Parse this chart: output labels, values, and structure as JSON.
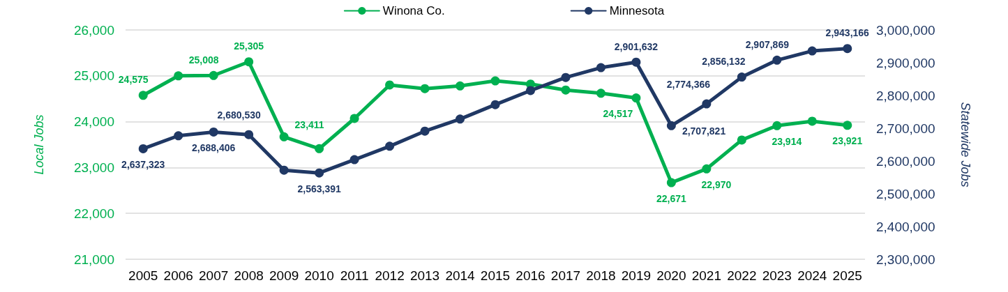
{
  "chart_data": {
    "type": "line",
    "categories": [
      "2005",
      "2006",
      "2007",
      "2008",
      "2009",
      "2010",
      "2011",
      "2012",
      "2013",
      "2014",
      "2015",
      "2016",
      "2017",
      "2018",
      "2019",
      "2020",
      "2021",
      "2022",
      "2023",
      "2024",
      "2025"
    ],
    "series": [
      {
        "name": "Winona Co.",
        "color": "#00b050",
        "axis": "y",
        "values": [
          24575,
          25000,
          25008,
          25305,
          23670,
          23411,
          24070,
          24800,
          24720,
          24780,
          24890,
          24820,
          24690,
          24620,
          24517,
          22671,
          22970,
          23600,
          23914,
          24010,
          23921
        ],
        "value_labels": [
          "24,575",
          null,
          "25,008",
          "25,305",
          null,
          "23,411",
          null,
          null,
          null,
          null,
          null,
          null,
          null,
          null,
          "24,517",
          "22,671",
          "22,970",
          null,
          "23,914",
          null,
          "23,921"
        ]
      },
      {
        "name": "Minnesota",
        "color": "#203864",
        "axis": "y2",
        "values": [
          2637323,
          2677000,
          2688406,
          2680530,
          2572000,
          2563391,
          2604000,
          2645000,
          2691000,
          2728000,
          2772000,
          2815000,
          2855000,
          2885000,
          2901632,
          2707821,
          2774366,
          2856132,
          2907869,
          2936000,
          2943166
        ],
        "value_labels": [
          "2,637,323",
          null,
          "2,688,406",
          "2,680,530",
          null,
          "2,563,391",
          null,
          null,
          null,
          null,
          null,
          null,
          null,
          null,
          "2,901,632",
          "2,707,821",
          "2,774,366",
          "2,856,132",
          "2,907,869",
          null,
          "2,943,166"
        ]
      }
    ],
    "ylabel": "Local Jobs",
    "y2label": "Statewide Jobs",
    "ylim": [
      21000,
      26000
    ],
    "yticks": [
      {
        "value": 21000,
        "label": "21,000"
      },
      {
        "value": 22000,
        "label": "22,000"
      },
      {
        "value": 23000,
        "label": "23,000"
      },
      {
        "value": 24000,
        "label": "24,000"
      },
      {
        "value": 25000,
        "label": "25,000"
      },
      {
        "value": 26000,
        "label": "26,000"
      }
    ],
    "y2lim": [
      2300000,
      3000000
    ],
    "y2ticks": [
      {
        "value": 2300000,
        "label": "2,300,000"
      },
      {
        "value": 2400000,
        "label": "2,400,000"
      },
      {
        "value": 2500000,
        "label": "2,500,000"
      },
      {
        "value": 2600000,
        "label": "2,600,000"
      },
      {
        "value": 2700000,
        "label": "2,700,000"
      },
      {
        "value": 2800000,
        "label": "2,800,000"
      },
      {
        "value": 2900000,
        "label": "2,900,000"
      },
      {
        "value": 3000000,
        "label": "3,000,000"
      }
    ],
    "grid": "y",
    "legend": "top",
    "marker": "circle",
    "line_style": "solid"
  }
}
